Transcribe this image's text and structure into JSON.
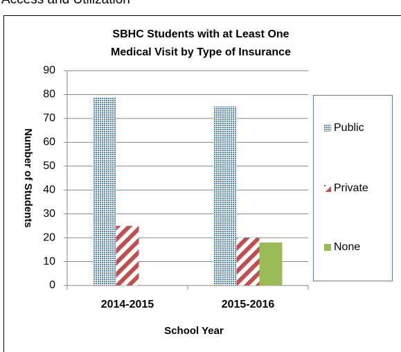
{
  "heading": "Access and Utilization",
  "chart_data": {
    "type": "bar",
    "title": [
      "SBHC Students with at Least One",
      "Medical Visit by Type of Insurance"
    ],
    "x_label": "School Year",
    "y_label": "Number of Students",
    "categories": [
      "2014-2015",
      "2015-2016"
    ],
    "series": [
      {
        "name": "Public",
        "color": "#4f81bd",
        "pattern": "dots",
        "values": [
          79,
          75
        ]
      },
      {
        "name": "Private",
        "color": "#c0504d",
        "pattern": "stripes",
        "values": [
          25,
          20
        ]
      },
      {
        "name": "None",
        "color": "#9bbb59",
        "pattern": "solid",
        "values": [
          null,
          18
        ]
      }
    ],
    "ylim": [
      0,
      90
    ],
    "yticks": [
      0,
      10,
      20,
      30,
      40,
      50,
      60,
      70,
      80,
      90
    ],
    "grid": true,
    "legend": "right"
  }
}
